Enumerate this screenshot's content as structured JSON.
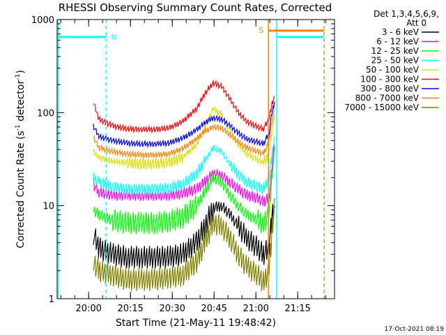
{
  "chart_data": {
    "type": "line",
    "title": "RHESSI Observing Summary Count Rates, Corrected",
    "xlabel": "Start Time (21-May-11 19:48:42)",
    "ylabel_main": "Corrected Count Rate (s",
    "ylabel_sup1": "-1",
    "ylabel_mid": " detector",
    "ylabel_sup2": "-1",
    "ylabel_end": ")",
    "y_scale": "log",
    "ylim": [
      1,
      1000
    ],
    "y_ticks": [
      {
        "value": 1,
        "label": "1"
      },
      {
        "value": 10,
        "label": "10"
      },
      {
        "value": 100,
        "label": "100"
      },
      {
        "value": 1000,
        "label": "1000"
      }
    ],
    "xlim_minutes_from_19_48_42": [
      0,
      99.5
    ],
    "x_ticks": [
      {
        "label": "20:00",
        "min": 11.3
      },
      {
        "label": "20:15",
        "min": 26.3
      },
      {
        "label": "20:30",
        "min": 41.3
      },
      {
        "label": "20:45",
        "min": 56.3
      },
      {
        "label": "21:00",
        "min": 71.3
      },
      {
        "label": "21:15",
        "min": 86.3
      }
    ],
    "legend": {
      "position": "right",
      "header_line1": "Det 1,3,4,5,6,9,",
      "header_line2": "Att 0",
      "entries": [
        {
          "label": "3 - 6 keV",
          "color": "#000000"
        },
        {
          "label": "6 - 12 keV",
          "color": "#ff00ff"
        },
        {
          "label": "12 - 25 keV",
          "color": "#00ff00"
        },
        {
          "label": "25 - 50 keV",
          "color": "#00ffff"
        },
        {
          "label": "50 - 100 keV",
          "color": "#dddd00"
        },
        {
          "label": "100 - 300 keV",
          "color": "#ff0000"
        },
        {
          "label": "300 - 800 keV",
          "color": "#0000ff"
        },
        {
          "label": "800 - 7000 keV",
          "color": "#ff8000"
        },
        {
          "label": "7000 - 15000 keV",
          "color": "#808000"
        }
      ]
    },
    "series": [
      {
        "name": "3 - 6 keV",
        "color": "#000000",
        "x": [
          13,
          15,
          20,
          25,
          30,
          35,
          40,
          45,
          50,
          53,
          56,
          59,
          62,
          65,
          68,
          72,
          74,
          76,
          77,
          78
        ],
        "y": [
          5,
          3.5,
          3.0,
          2.8,
          2.8,
          2.8,
          2.8,
          3.0,
          4.0,
          6.0,
          9.5,
          10,
          8.0,
          6.0,
          4.5,
          3.5,
          3.0,
          3.5,
          7,
          10
        ]
      },
      {
        "name": "6 - 12 keV",
        "color": "#ff00ff",
        "x": [
          13,
          15,
          20,
          25,
          30,
          35,
          40,
          45,
          50,
          53,
          56,
          59,
          62,
          65,
          68,
          72,
          74,
          76,
          77,
          78
        ],
        "y": [
          17,
          14,
          13,
          13,
          13,
          13,
          13,
          13.5,
          15,
          18,
          22,
          21,
          18,
          15,
          13,
          12,
          11,
          12,
          25,
          45
        ]
      },
      {
        "name": "12 - 25 keV",
        "color": "#00ff00",
        "x": [
          13,
          15,
          20,
          25,
          30,
          35,
          40,
          45,
          50,
          53,
          56,
          59,
          62,
          65,
          68,
          72,
          74,
          76,
          77,
          78
        ],
        "y": [
          9,
          8,
          7,
          6.5,
          6.5,
          6.5,
          6.8,
          7.5,
          10,
          14,
          20,
          18,
          13,
          10,
          8,
          7,
          6.5,
          8,
          20,
          40
        ]
      },
      {
        "name": "25 - 50 keV",
        "color": "#00ffff",
        "x": [
          13,
          15,
          20,
          25,
          30,
          35,
          40,
          45,
          50,
          53,
          56,
          59,
          62,
          65,
          68,
          72,
          74,
          76,
          77,
          78
        ],
        "y": [
          20,
          18,
          16,
          15,
          15,
          15,
          15.5,
          17,
          22,
          30,
          42,
          38,
          28,
          22,
          18,
          16,
          15,
          20,
          35,
          55
        ]
      },
      {
        "name": "50 - 100 keV",
        "color": "#dddd00",
        "x": [
          13,
          15,
          20,
          25,
          30,
          35,
          40,
          45,
          50,
          53,
          56,
          59,
          62,
          65,
          68,
          72,
          74,
          76,
          77,
          78
        ],
        "y": [
          38,
          33,
          30,
          29,
          28,
          28,
          29,
          33,
          45,
          70,
          110,
          95,
          65,
          45,
          36,
          31,
          29,
          35,
          60,
          95
        ]
      },
      {
        "name": "100 - 300 keV",
        "color": "#ff0000",
        "x": [
          13,
          15,
          20,
          25,
          30,
          35,
          40,
          45,
          50,
          53,
          56,
          59,
          62,
          65,
          68,
          72,
          74,
          76,
          77,
          78
        ],
        "y": [
          130,
          85,
          72,
          67,
          66,
          66,
          68,
          80,
          110,
          160,
          210,
          190,
          140,
          100,
          80,
          70,
          67,
          85,
          120,
          150
        ]
      },
      {
        "name": "300 - 800 keV",
        "color": "#0000ff",
        "x": [
          13,
          15,
          20,
          25,
          30,
          35,
          40,
          45,
          50,
          53,
          56,
          59,
          62,
          65,
          68,
          72,
          74,
          76,
          77,
          78
        ],
        "y": [
          72,
          55,
          50,
          47,
          46,
          46,
          47,
          53,
          65,
          78,
          88,
          85,
          72,
          60,
          52,
          48,
          46,
          60,
          95,
          130
        ]
      },
      {
        "name": "800 - 7000 keV",
        "color": "#ff8000",
        "x": [
          13,
          15,
          20,
          25,
          30,
          35,
          40,
          45,
          50,
          53,
          56,
          59,
          62,
          65,
          68,
          72,
          74,
          76,
          77,
          78
        ],
        "y": [
          55,
          42,
          38,
          36,
          35,
          35,
          36,
          41,
          52,
          63,
          70,
          68,
          58,
          48,
          42,
          38,
          36,
          48,
          80,
          110
        ]
      },
      {
        "name": "7000 - 15000 keV",
        "color": "#808000",
        "x": [
          13,
          15,
          20,
          25,
          30,
          35,
          40,
          45,
          50,
          53,
          56,
          59,
          62,
          65,
          68,
          72,
          74,
          76,
          77,
          78
        ],
        "y": [
          2.5,
          2.0,
          1.8,
          1.6,
          1.6,
          1.6,
          1.7,
          1.8,
          2.5,
          4.0,
          6.5,
          6.0,
          4.5,
          3.0,
          2.2,
          1.8,
          1.5,
          2.0,
          5.0,
          12
        ]
      }
    ],
    "segments": {
      "night": {
        "label": "N",
        "color": "#00ffff",
        "level": 650,
        "intervals": [
          [
            0,
            17.6
          ],
          [
            78.8,
            95.8
          ]
        ],
        "boundaries": [
          0.4,
          17.6,
          78.8,
          95.8
        ]
      },
      "saa": {
        "label": "S",
        "color": "#ff8000",
        "level": 760,
        "intervals": [
          [
            75.8,
            95.8
          ]
        ],
        "boundaries": [
          75.8
        ]
      }
    },
    "footer_timestamp": "17-Oct-2021 08:19"
  }
}
